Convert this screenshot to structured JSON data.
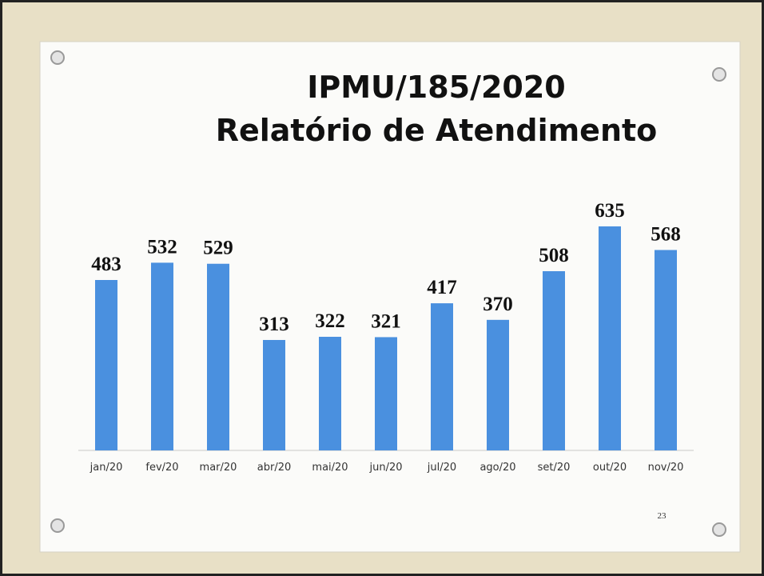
{
  "chart_data": {
    "type": "bar",
    "title": "IPMU/185/2020",
    "subtitle": "Relatório de Atendimento",
    "categories": [
      "jan/20",
      "fev/20",
      "mar/20",
      "abr/20",
      "mai/20",
      "jun/20",
      "jul/20",
      "ago/20",
      "set/20",
      "out/20",
      "nov/20"
    ],
    "values": [
      483,
      532,
      529,
      313,
      322,
      321,
      417,
      370,
      508,
      635,
      568
    ],
    "color": "#4a90df",
    "slide_number": 23
  }
}
